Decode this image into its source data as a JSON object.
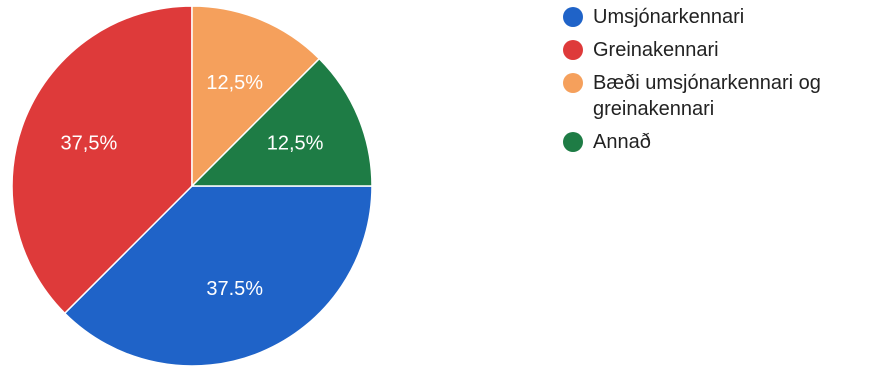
{
  "chart_data": {
    "type": "pie",
    "title": "",
    "slices": [
      {
        "label": "Umsjónarkennari",
        "value": 37.5,
        "display": "37.5%",
        "color": "#1f63c8"
      },
      {
        "label": "Greinakennari",
        "value": 37.5,
        "display": "37,5%",
        "color": "#de3a3a"
      },
      {
        "label": "Bæði umsjónarkennari og greinakennari",
        "value": 12.5,
        "display": "12,5%",
        "color": "#f5a05c"
      },
      {
        "label": "Annað",
        "value": 12.5,
        "display": "12,5%",
        "color": "#1e7c45"
      }
    ],
    "legend_position": "right"
  }
}
